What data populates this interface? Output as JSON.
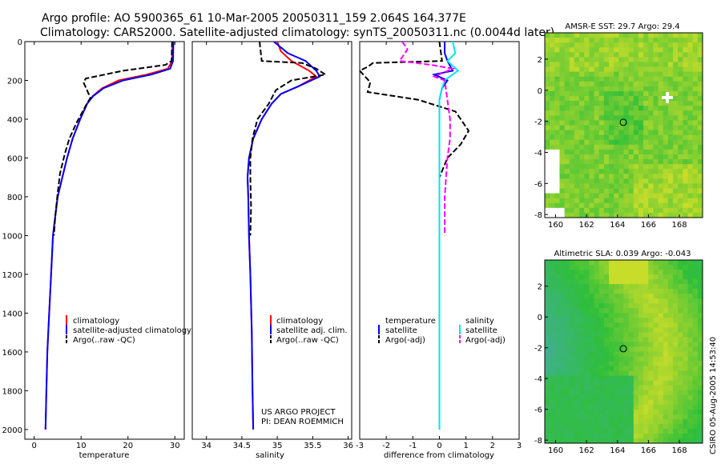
{
  "header": {
    "line1": "Argo profile: AO 5900365_61 10-Mar-2005 20050311_159 2.064S 164.377E",
    "line2": "Climatology: CARS2000. Satellite-adjusted climatology: synTS_20050311.nc (0.0044d later)"
  },
  "colors": {
    "climatology": "#ff0000",
    "satellite": "#0000ff",
    "argo": "#000000",
    "salinity_satellite": "#00e5ee",
    "salinity_argo": "#ff00ff",
    "map_land": "#ffffff",
    "map_green": "#2fbf3a",
    "map_yellow": "#c8dc2a",
    "map_teal": "#3fb08f"
  },
  "chart_data": [
    {
      "id": "temperature",
      "type": "line",
      "xlabel": "temperature",
      "ylabel": "",
      "xlim": [
        -2,
        32
      ],
      "ylim": [
        2050,
        0
      ],
      "xticks": [
        0,
        10,
        20,
        30
      ],
      "yticks": [
        0,
        200,
        400,
        600,
        800,
        1000,
        1200,
        1400,
        1600,
        1800,
        2000
      ],
      "legend": [
        "climatology",
        "satellite-adjusted climatology",
        "Argo(..raw -QC)"
      ],
      "series": [
        {
          "name": "climatology",
          "color": "#ff0000",
          "dash": false,
          "x": [
            29.5,
            29.4,
            28.5,
            24,
            18,
            14.5,
            12.5,
            11.3,
            9.8,
            8.2,
            7,
            6,
            5,
            4.5,
            4,
            3.6,
            3.2,
            2.8,
            2.6,
            2.4
          ],
          "y": [
            0,
            100,
            140,
            170,
            200,
            240,
            280,
            320,
            400,
            500,
            600,
            700,
            800,
            900,
            1000,
            1200,
            1400,
            1600,
            1800,
            2000
          ]
        },
        {
          "name": "satellite-adjusted climatology",
          "color": "#0000ff",
          "dash": false,
          "x": [
            29.7,
            29.6,
            29,
            25,
            19,
            14.8,
            12.6,
            11.3,
            9.8,
            8.2,
            7,
            6,
            5,
            4.5,
            4,
            3.6,
            3.2,
            2.8,
            2.6,
            2.4
          ],
          "y": [
            0,
            100,
            140,
            170,
            200,
            240,
            280,
            320,
            400,
            500,
            600,
            700,
            800,
            900,
            1000,
            1200,
            1400,
            1600,
            1800,
            2000
          ]
        },
        {
          "name": "Argo(..raw -QC)",
          "color": "#000000",
          "dash": true,
          "x": [
            29.4,
            29.3,
            28,
            19,
            11,
            10.5,
            12,
            11,
            9,
            7.5,
            6.5,
            5.5,
            5,
            4.5,
            4.2
          ],
          "y": [
            0,
            100,
            120,
            150,
            190,
            210,
            290,
            330,
            420,
            500,
            580,
            680,
            780,
            900,
            1000
          ]
        }
      ]
    },
    {
      "id": "salinity",
      "type": "line",
      "xlabel": "salinity",
      "ylabel": "",
      "xlim": [
        33.8,
        36.05
      ],
      "ylim": [
        2050,
        0
      ],
      "xticks": [
        34,
        34.5,
        35,
        35.5,
        36
      ],
      "yticks": [],
      "legend": [
        "climatology",
        "satellite adj. clim.",
        "Argo(..raw -QC)"
      ],
      "annotations": [
        "US ARGO PROJECT",
        "PI: DEAN ROEMMICH"
      ],
      "series": [
        {
          "name": "climatology",
          "color": "#ff0000",
          "dash": false,
          "x": [
            35,
            35.05,
            35.2,
            35.45,
            35.55,
            35.3,
            35.05,
            34.92,
            34.78,
            34.66,
            34.6,
            34.58,
            34.59,
            34.6,
            34.62,
            34.64,
            34.65,
            34.66
          ],
          "y": [
            0,
            50,
            100,
            150,
            180,
            230,
            270,
            320,
            400,
            500,
            600,
            700,
            800,
            1000,
            1200,
            1500,
            1800,
            2000
          ]
        },
        {
          "name": "satellite adj. clim.",
          "color": "#0000ff",
          "dash": false,
          "x": [
            34.95,
            35.15,
            35.4,
            35.55,
            35.6,
            35.3,
            35.05,
            34.92,
            34.78,
            34.66,
            34.6,
            34.58,
            34.59,
            34.6,
            34.62,
            34.64,
            34.65,
            34.66
          ],
          "y": [
            0,
            60,
            100,
            150,
            180,
            230,
            270,
            320,
            400,
            500,
            600,
            700,
            800,
            1000,
            1200,
            1500,
            1800,
            2000
          ]
        },
        {
          "name": "Argo(..raw -QC)",
          "color": "#000000",
          "dash": true,
          "x": [
            34.75,
            34.78,
            35.35,
            35.55,
            35.68,
            35.2,
            34.98,
            34.88,
            34.72,
            34.65,
            34.62,
            34.62,
            34.63,
            34.62
          ],
          "y": [
            0,
            100,
            110,
            140,
            170,
            200,
            250,
            320,
            400,
            500,
            600,
            700,
            850,
            1000
          ]
        }
      ]
    },
    {
      "id": "difference",
      "type": "line",
      "xlabel": "difference from climatology",
      "ylabel": "",
      "xlim": [
        -3,
        3
      ],
      "ylim": [
        2050,
        0
      ],
      "xticks": [
        -3,
        -2,
        -1,
        0,
        1,
        2,
        3
      ],
      "yticks": [],
      "legend_left_title": "temperature",
      "legend_left": [
        "satellite",
        "Argo(-adj)"
      ],
      "legend_right_title": "salinity",
      "legend_right": [
        "satellite",
        "Argo(-adj)"
      ],
      "series": [
        {
          "name": "temperature satellite",
          "color": "#0000ff",
          "dash": false,
          "x": [
            0.2,
            0.2,
            0.3,
            0.5,
            -0.2,
            0.3,
            0.1,
            0,
            0,
            0,
            0
          ],
          "y": [
            0,
            60,
            100,
            150,
            170,
            200,
            240,
            300,
            500,
            1000,
            2000
          ]
        },
        {
          "name": "temperature Argo(-adj)",
          "color": "#000000",
          "dash": true,
          "x": [
            0,
            0.1,
            -2.5,
            -2.7,
            -3,
            -2.8,
            -2.6,
            -2.7,
            -0.8,
            0.6,
            1.1,
            0.8,
            0.3,
            0,
            0,
            0
          ],
          "y": [
            0,
            100,
            110,
            130,
            150,
            180,
            210,
            260,
            300,
            360,
            460,
            530,
            600,
            700,
            800,
            1000
          ]
        },
        {
          "name": "salinity satellite",
          "color": "#00e5ee",
          "dash": false,
          "x": [
            0.5,
            0.6,
            0.3,
            0.7,
            0.2,
            0.1,
            0,
            0,
            0
          ],
          "y": [
            0,
            60,
            100,
            150,
            200,
            240,
            300,
            600,
            2000
          ]
        },
        {
          "name": "salinity Argo(-adj)",
          "color": "#ff00ff",
          "dash": true,
          "x": [
            -1.4,
            -1.2,
            -1.5,
            -0.3,
            0.5,
            -0.2,
            0.2,
            0.3,
            0.4,
            0.4,
            0.3,
            0.2,
            0.2
          ],
          "y": [
            0,
            40,
            100,
            120,
            140,
            180,
            200,
            300,
            400,
            500,
            600,
            800,
            1000
          ]
        }
      ]
    },
    {
      "id": "sst_map",
      "type": "heatmap",
      "title": "AMSR-E SST: 29.7 Argo: 29.4",
      "xlim": [
        159.3,
        169.5
      ],
      "ylim": [
        -8.2,
        3.7
      ],
      "xticks": [
        160,
        162,
        164,
        166,
        168
      ],
      "yticks": [
        2,
        0,
        -2,
        -4,
        -6,
        -8
      ],
      "argo_position": [
        164.377,
        -2.064
      ]
    },
    {
      "id": "sla_map",
      "type": "heatmap",
      "title": "Altimetric SLA: 0.039 Argo: -0.043",
      "xlim": [
        159.3,
        169.5
      ],
      "ylim": [
        -8.2,
        3.7
      ],
      "xticks": [
        160,
        162,
        164,
        166,
        168
      ],
      "yticks": [
        2,
        0,
        -2,
        -4,
        -6,
        -8
      ],
      "argo_position": [
        164.377,
        -2.064
      ]
    }
  ],
  "side_label": "CSIRO 05-Aug-2005 14:53:40"
}
